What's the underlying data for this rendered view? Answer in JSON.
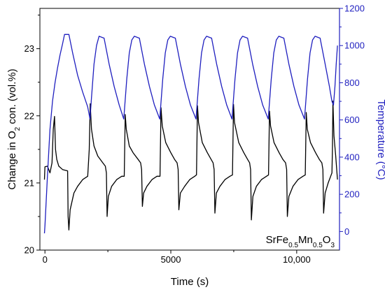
{
  "chart_data": {
    "type": "line",
    "xlabel": "Time (s)",
    "ylabel_left": {
      "prefix": "Change in O",
      "sub": "2",
      "suffix": " con. (vol.%)"
    },
    "ylabel_right": "Temperature (°C)",
    "annotation": {
      "parts": [
        {
          "t": "SrFe",
          "sub": false
        },
        {
          "t": "0.5",
          "sub": true
        },
        {
          "t": "Mn",
          "sub": false
        },
        {
          "t": "0.5",
          "sub": true
        },
        {
          "t": "O",
          "sub": false
        },
        {
          "t": "3",
          "sub": true
        }
      ]
    },
    "xlim": [
      -200,
      11700
    ],
    "ylim_left": [
      20,
      23.6
    ],
    "ylim_right": [
      -100,
      1200
    ],
    "x_ticks": [
      0,
      5000,
      10000
    ],
    "x_tick_labels": [
      "0",
      "5000",
      "10,000"
    ],
    "y_left_ticks": [
      20,
      21,
      22,
      23
    ],
    "y_left_tick_labels": [
      "20",
      "21",
      "22",
      "23"
    ],
    "y_right_ticks": [
      0,
      200,
      400,
      600,
      800,
      1000,
      1200
    ],
    "y_right_tick_labels": [
      "0",
      "200",
      "400",
      "600",
      "800",
      "1000",
      "1200"
    ],
    "series": [
      {
        "axis": "left",
        "color": "#000000",
        "points": [
          [
            -20,
            21.05
          ],
          [
            0,
            21.24
          ],
          [
            100,
            21.25
          ],
          [
            200,
            21.15
          ],
          [
            280,
            21.3
          ],
          [
            330,
            21.8
          ],
          [
            380,
            21.99
          ],
          [
            420,
            21.5
          ],
          [
            470,
            21.35
          ],
          [
            550,
            21.25
          ],
          [
            700,
            21.2
          ],
          [
            900,
            21.18
          ],
          [
            920,
            20.5
          ],
          [
            950,
            20.3
          ],
          [
            1000,
            20.6
          ],
          [
            1150,
            20.85
          ],
          [
            1300,
            20.95
          ],
          [
            1500,
            21.05
          ],
          [
            1700,
            21.1
          ],
          [
            1760,
            21.5
          ],
          [
            1800,
            22.18
          ],
          [
            1850,
            21.8
          ],
          [
            1950,
            21.55
          ],
          [
            2100,
            21.4
          ],
          [
            2300,
            21.3
          ],
          [
            2400,
            21.25
          ],
          [
            2440,
            21.15
          ],
          [
            2470,
            20.5
          ],
          [
            2520,
            20.8
          ],
          [
            2650,
            20.95
          ],
          [
            2850,
            21.05
          ],
          [
            3050,
            21.1
          ],
          [
            3150,
            21.1
          ],
          [
            3190,
            22.02
          ],
          [
            3230,
            21.8
          ],
          [
            3350,
            21.55
          ],
          [
            3500,
            21.45
          ],
          [
            3700,
            21.35
          ],
          [
            3800,
            21.3
          ],
          [
            3840,
            21.2
          ],
          [
            3870,
            20.65
          ],
          [
            3920,
            20.85
          ],
          [
            4050,
            20.95
          ],
          [
            4250,
            21.05
          ],
          [
            4450,
            21.1
          ],
          [
            4570,
            21.1
          ],
          [
            4610,
            22.12
          ],
          [
            4660,
            21.85
          ],
          [
            4800,
            21.6
          ],
          [
            5000,
            21.45
          ],
          [
            5150,
            21.35
          ],
          [
            5250,
            21.3
          ],
          [
            5290,
            21.2
          ],
          [
            5320,
            20.6
          ],
          [
            5380,
            20.85
          ],
          [
            5550,
            20.95
          ],
          [
            5750,
            21.05
          ],
          [
            5950,
            21.1
          ],
          [
            6020,
            21.12
          ],
          [
            6060,
            22.15
          ],
          [
            6100,
            21.9
          ],
          [
            6250,
            21.6
          ],
          [
            6450,
            21.45
          ],
          [
            6600,
            21.35
          ],
          [
            6680,
            21.3
          ],
          [
            6720,
            21.2
          ],
          [
            6750,
            20.55
          ],
          [
            6810,
            20.85
          ],
          [
            6950,
            20.95
          ],
          [
            7150,
            21.05
          ],
          [
            7350,
            21.1
          ],
          [
            7450,
            21.12
          ],
          [
            7490,
            22.17
          ],
          [
            7530,
            21.9
          ],
          [
            7700,
            21.6
          ],
          [
            7900,
            21.45
          ],
          [
            8050,
            21.35
          ],
          [
            8130,
            21.3
          ],
          [
            8170,
            21.2
          ],
          [
            8200,
            20.45
          ],
          [
            8260,
            20.8
          ],
          [
            8400,
            20.95
          ],
          [
            8600,
            21.05
          ],
          [
            8800,
            21.1
          ],
          [
            8880,
            21.12
          ],
          [
            8920,
            22.07
          ],
          [
            8960,
            21.85
          ],
          [
            9100,
            21.6
          ],
          [
            9300,
            21.45
          ],
          [
            9450,
            21.35
          ],
          [
            9560,
            21.3
          ],
          [
            9600,
            21.2
          ],
          [
            9630,
            20.5
          ],
          [
            9690,
            20.8
          ],
          [
            9850,
            20.95
          ],
          [
            10050,
            21.05
          ],
          [
            10250,
            21.1
          ],
          [
            10340,
            21.12
          ],
          [
            10380,
            22.05
          ],
          [
            10420,
            21.8
          ],
          [
            10550,
            21.6
          ],
          [
            10750,
            21.45
          ],
          [
            10900,
            21.35
          ],
          [
            11000,
            21.3
          ],
          [
            11040,
            21.2
          ],
          [
            11070,
            20.55
          ],
          [
            11130,
            20.85
          ],
          [
            11250,
            21.0
          ],
          [
            11350,
            21.1
          ],
          [
            11400,
            21.15
          ],
          [
            11420,
            21.5
          ],
          [
            11440,
            22.22
          ],
          [
            11480,
            21.7
          ],
          [
            11550,
            21.4
          ],
          [
            11620,
            21.05
          ]
        ]
      },
      {
        "axis": "right",
        "color": "#1f1fbf",
        "points": [
          [
            -20,
            -10
          ],
          [
            0,
            30
          ],
          [
            100,
            300
          ],
          [
            200,
            550
          ],
          [
            300,
            700
          ],
          [
            400,
            800
          ],
          [
            500,
            880
          ],
          [
            600,
            950
          ],
          [
            700,
            1010
          ],
          [
            780,
            1060
          ],
          [
            950,
            1060
          ],
          [
            1100,
            960
          ],
          [
            1300,
            840
          ],
          [
            1500,
            750
          ],
          [
            1700,
            670
          ],
          [
            1790,
            605
          ],
          [
            1850,
            720
          ],
          [
            1950,
            900
          ],
          [
            2050,
            1000
          ],
          [
            2150,
            1050
          ],
          [
            2350,
            1040
          ],
          [
            2550,
            900
          ],
          [
            2750,
            780
          ],
          [
            2950,
            680
          ],
          [
            3130,
            605
          ],
          [
            3250,
            820
          ],
          [
            3350,
            960
          ],
          [
            3450,
            1030
          ],
          [
            3550,
            1050
          ],
          [
            3750,
            1040
          ],
          [
            3950,
            900
          ],
          [
            4150,
            780
          ],
          [
            4350,
            680
          ],
          [
            4560,
            605
          ],
          [
            4680,
            820
          ],
          [
            4780,
            960
          ],
          [
            4880,
            1030
          ],
          [
            4980,
            1050
          ],
          [
            5180,
            1040
          ],
          [
            5380,
            900
          ],
          [
            5580,
            780
          ],
          [
            5780,
            680
          ],
          [
            6000,
            605
          ],
          [
            6120,
            820
          ],
          [
            6220,
            960
          ],
          [
            6320,
            1030
          ],
          [
            6420,
            1050
          ],
          [
            6620,
            1040
          ],
          [
            6820,
            900
          ],
          [
            7020,
            780
          ],
          [
            7220,
            680
          ],
          [
            7430,
            605
          ],
          [
            7550,
            820
          ],
          [
            7650,
            960
          ],
          [
            7750,
            1030
          ],
          [
            7850,
            1050
          ],
          [
            8050,
            1040
          ],
          [
            8250,
            900
          ],
          [
            8450,
            780
          ],
          [
            8650,
            680
          ],
          [
            8870,
            605
          ],
          [
            8990,
            820
          ],
          [
            9090,
            960
          ],
          [
            9190,
            1030
          ],
          [
            9290,
            1050
          ],
          [
            9490,
            1040
          ],
          [
            9690,
            900
          ],
          [
            9890,
            780
          ],
          [
            10090,
            680
          ],
          [
            10310,
            605
          ],
          [
            10430,
            820
          ],
          [
            10530,
            960
          ],
          [
            10630,
            1030
          ],
          [
            10730,
            1050
          ],
          [
            10930,
            1040
          ],
          [
            11130,
            900
          ],
          [
            11300,
            780
          ],
          [
            11400,
            700
          ],
          [
            11460,
            680
          ],
          [
            11520,
            780
          ],
          [
            11570,
            900
          ],
          [
            11620,
            1000
          ]
        ]
      }
    ]
  },
  "colors": {
    "left_axis": "#000000",
    "right_axis": "#1f1fbf"
  }
}
